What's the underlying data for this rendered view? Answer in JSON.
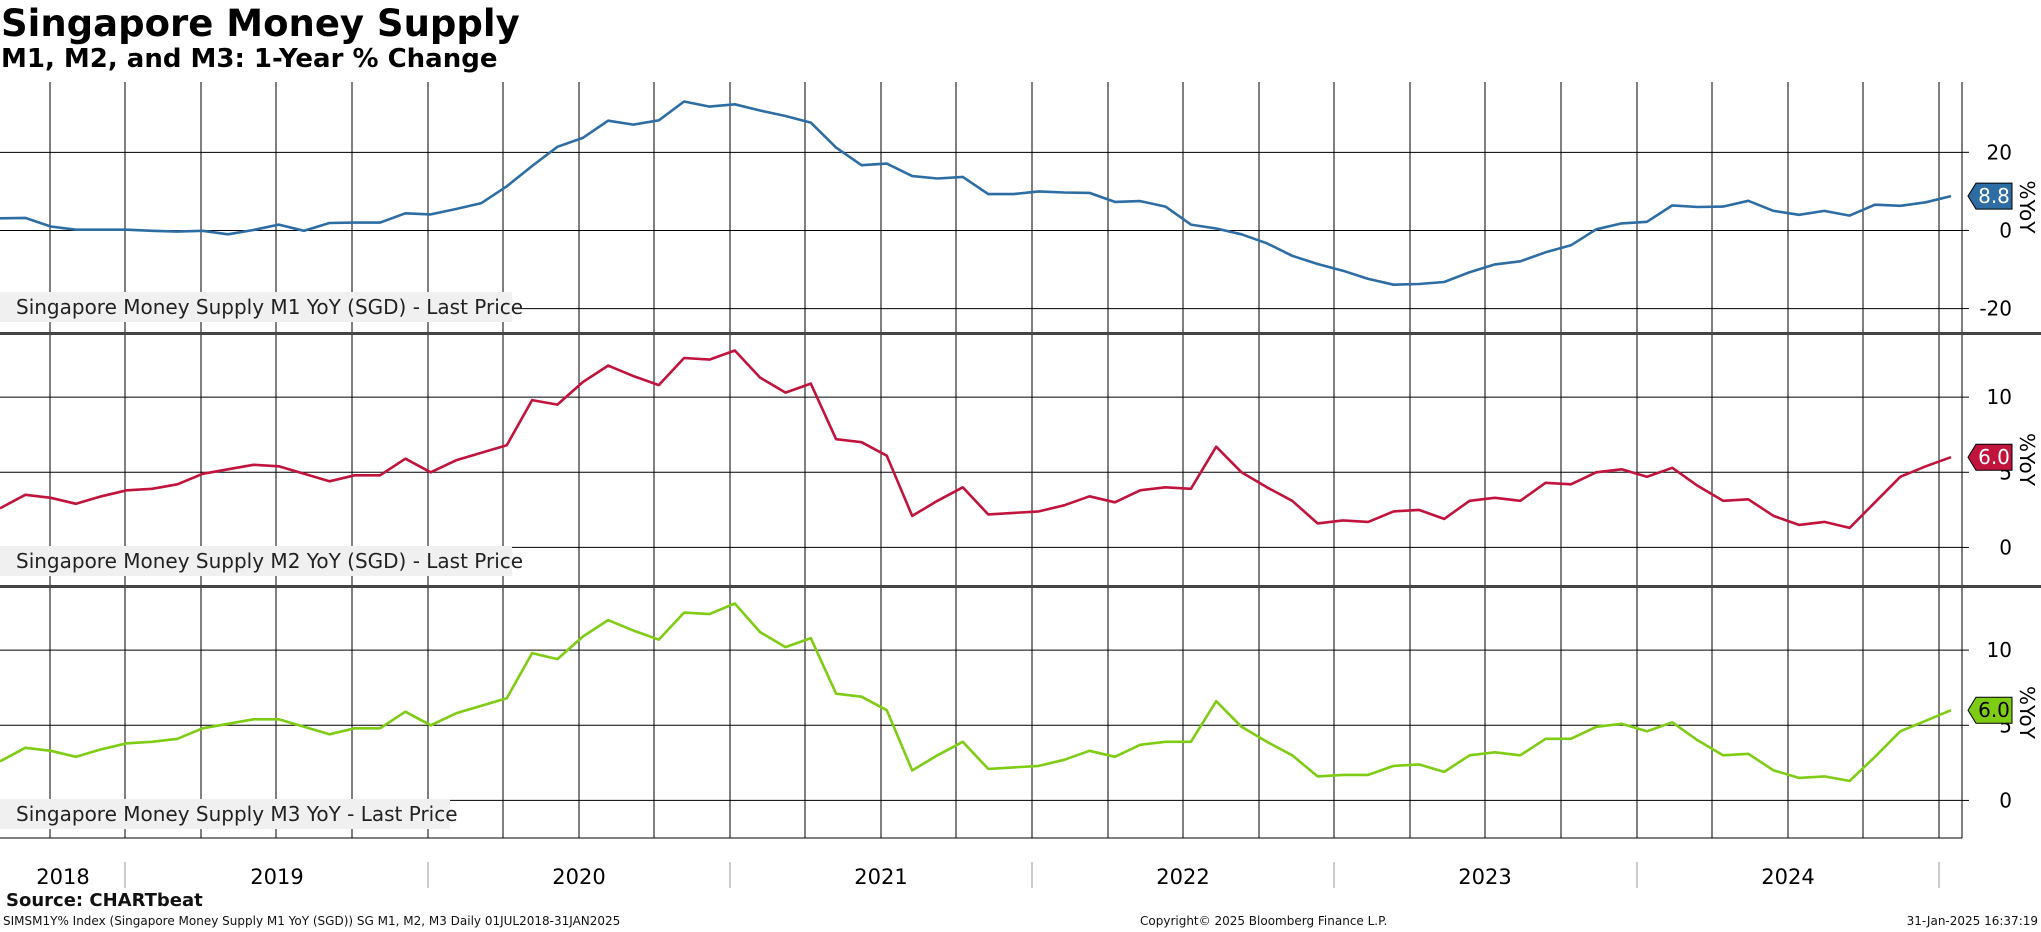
{
  "header": {
    "title": "Singapore Money Supply",
    "subtitle": "M1, M2, and M3: 1-Year % Change"
  },
  "footer": {
    "source": "Source: CHARTbeat",
    "left": "SIMSM1Y% Index (Singapore Money Supply M1 YoY (SGD)) SG M1, M2, M3  Daily 01JUL2018-31JAN2025",
    "center": "Copyright© 2025 Bloomberg Finance L.P.",
    "right": "31-Jan-2025 16:37:19"
  },
  "chart_data": {
    "type": "line",
    "x_start": "2018-07",
    "x_end": "2025-01",
    "x_tick_labels": [
      "2018",
      "2019",
      "2020",
      "2021",
      "2022",
      "2023",
      "2024"
    ],
    "panels": [
      {
        "name": "Singapore Money Supply M1 YoY (SGD) - Last Price",
        "color": "#2e6da4",
        "axis_label": "%YoY",
        "ylim": [
          -26,
          38
        ],
        "yticks": [
          -20,
          0,
          20
        ],
        "last_value": 8.8,
        "last_label": "8.8",
        "values": [
          3.1,
          3.2,
          1.0,
          0.2,
          0.2,
          0.2,
          -0.1,
          -0.3,
          -0.1,
          -1.0,
          0.1,
          1.5,
          -0.1,
          1.9,
          2.0,
          2.0,
          4.4,
          4.1,
          5.5,
          7.0,
          11.3,
          16.5,
          21.4,
          23.7,
          28.1,
          27.1,
          28.2,
          33.0,
          31.7,
          32.3,
          30.7,
          29.3,
          27.6,
          21.2,
          16.7,
          17.1,
          13.9,
          13.3,
          13.7,
          9.3,
          9.3,
          10.0,
          9.7,
          9.6,
          7.3,
          7.5,
          6.1,
          1.5,
          0.5,
          -1.0,
          -3.3,
          -6.5,
          -8.6,
          -10.3,
          -12.4,
          -13.9,
          -13.7,
          -13.2,
          -10.7,
          -8.7,
          -7.9,
          -5.6,
          -3.8,
          0.3,
          1.8,
          2.2,
          6.4,
          6.0,
          6.1,
          7.6,
          5.0,
          4.0,
          5.0,
          3.8,
          6.6,
          6.3,
          7.2,
          8.8
        ]
      },
      {
        "name": "Singapore Money Supply M2 YoY (SGD) - Last Price",
        "color": "#c0143c",
        "axis_label": "%YoY",
        "ylim": [
          -2.5,
          14.2
        ],
        "yticks": [
          0,
          5,
          10
        ],
        "last_value": 6.0,
        "last_label": "6.0",
        "values": [
          2.6,
          3.5,
          3.3,
          2.9,
          3.4,
          3.8,
          3.9,
          4.2,
          4.9,
          5.2,
          5.5,
          5.4,
          4.9,
          4.4,
          4.8,
          4.8,
          5.9,
          5.0,
          5.8,
          6.3,
          6.8,
          9.8,
          9.5,
          11.0,
          12.1,
          11.4,
          10.8,
          12.6,
          12.5,
          13.1,
          11.3,
          10.3,
          10.9,
          7.2,
          7.0,
          6.1,
          2.1,
          3.1,
          4.0,
          2.2,
          2.3,
          2.4,
          2.8,
          3.4,
          3.0,
          3.8,
          4.0,
          3.9,
          6.7,
          5.0,
          4.0,
          3.1,
          1.6,
          1.8,
          1.7,
          2.4,
          2.5,
          1.9,
          3.1,
          3.3,
          3.1,
          4.3,
          4.2,
          5.0,
          5.2,
          4.7,
          5.3,
          4.1,
          3.1,
          3.2,
          2.1,
          1.5,
          1.7,
          1.3,
          3.0,
          4.7,
          5.4,
          6.0
        ]
      },
      {
        "name": "Singapore Money Supply M3 YoY - Last Price",
        "color": "#7fcc14",
        "axis_label": "%YoY",
        "ylim": [
          -2.5,
          14.2
        ],
        "yticks": [
          0,
          5,
          10
        ],
        "last_value": 6.0,
        "last_label": "6.0",
        "values": [
          2.6,
          3.5,
          3.3,
          2.9,
          3.4,
          3.8,
          3.9,
          4.1,
          4.8,
          5.1,
          5.4,
          5.4,
          4.9,
          4.4,
          4.8,
          4.8,
          5.9,
          5.0,
          5.8,
          6.3,
          6.8,
          9.8,
          9.4,
          10.9,
          12.0,
          11.3,
          10.7,
          12.5,
          12.4,
          13.1,
          11.2,
          10.2,
          10.8,
          7.1,
          6.9,
          6.0,
          2.0,
          3.0,
          3.9,
          2.1,
          2.2,
          2.3,
          2.7,
          3.3,
          2.9,
          3.7,
          3.9,
          3.9,
          6.6,
          4.9,
          3.9,
          3.0,
          1.6,
          1.7,
          1.7,
          2.3,
          2.4,
          1.9,
          3.0,
          3.2,
          3.0,
          4.1,
          4.1,
          4.9,
          5.1,
          4.6,
          5.2,
          4.0,
          3.0,
          3.1,
          2.0,
          1.5,
          1.6,
          1.3,
          2.9,
          4.6,
          5.3,
          6.0
        ]
      }
    ]
  }
}
